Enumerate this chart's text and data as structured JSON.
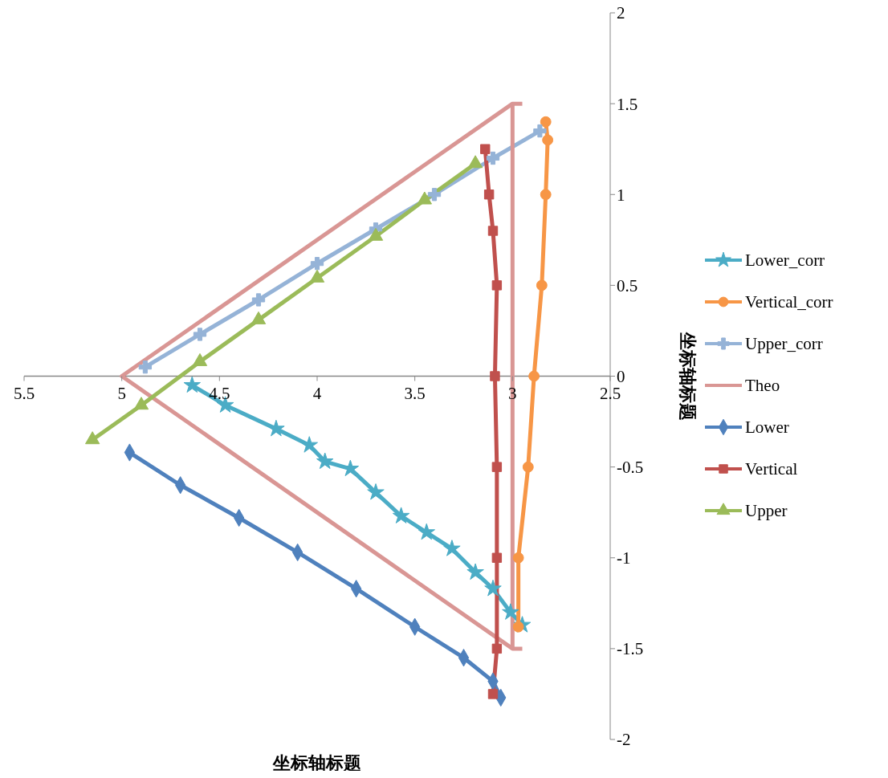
{
  "chart_data": {
    "type": "line",
    "xlabel": "坐标轴标题",
    "ylabel": "坐标轴标题",
    "xlim": [
      5.5,
      2.5
    ],
    "xticks": [
      5.5,
      5,
      4.5,
      4,
      3.5,
      3,
      2.5
    ],
    "ylim": [
      -2,
      2
    ],
    "yticks": [
      -2,
      -1.5,
      -1,
      -0.5,
      0,
      0.5,
      1,
      1.5,
      2
    ],
    "grid": false,
    "legend": "right",
    "series": [
      {
        "name": "Lower_corr",
        "color": "#4bacc6",
        "marker": "star",
        "x": [
          4.64,
          4.47,
          4.21,
          4.04,
          3.96,
          3.83,
          3.7,
          3.57,
          3.44,
          3.31,
          3.19,
          3.1,
          3.01,
          2.95
        ],
        "values": [
          -0.05,
          -0.16,
          -0.29,
          -0.38,
          -0.47,
          -0.51,
          -0.64,
          -0.77,
          -0.86,
          -0.95,
          -1.08,
          -1.17,
          -1.3,
          -1.37
        ]
      },
      {
        "name": "Vertical_corr",
        "color": "#f79646",
        "marker": "circle",
        "x": [
          2.97,
          2.97,
          2.92,
          2.89,
          2.85,
          2.83,
          2.82,
          2.83
        ],
        "values": [
          -1.38,
          -1.0,
          -0.5,
          0,
          0.5,
          1.0,
          1.3,
          1.4
        ]
      },
      {
        "name": "Upper_corr",
        "color": "#95b3d7",
        "marker": "cross",
        "x": [
          4.88,
          4.6,
          4.3,
          4.0,
          3.7,
          3.4,
          3.1,
          2.86
        ],
        "values": [
          0.05,
          0.23,
          0.42,
          0.62,
          0.81,
          1.0,
          1.2,
          1.35
        ]
      },
      {
        "name": "Theo",
        "color": "#d99694",
        "marker": "none",
        "x": [
          2.95,
          3,
          5,
          3,
          2.95,
          null,
          3,
          3
        ],
        "values": [
          1.5,
          1.5,
          0,
          -1.5,
          -1.5,
          null,
          -1.5,
          1.5
        ]
      },
      {
        "name": "Lower",
        "color": "#4f81bd",
        "marker": "diamond",
        "x": [
          4.96,
          4.7,
          4.4,
          4.1,
          3.8,
          3.5,
          3.25,
          3.1,
          3.06
        ],
        "values": [
          -0.42,
          -0.6,
          -0.78,
          -0.97,
          -1.17,
          -1.38,
          -1.55,
          -1.68,
          -1.77
        ]
      },
      {
        "name": "Vertical",
        "color": "#c0504d",
        "marker": "square",
        "x": [
          3.1,
          3.08,
          3.08,
          3.08,
          3.09,
          3.08,
          3.1,
          3.12,
          3.14
        ],
        "values": [
          -1.75,
          -1.5,
          -1.0,
          -0.5,
          0,
          0.5,
          0.8,
          1.0,
          1.25
        ]
      },
      {
        "name": "Upper",
        "color": "#9bbb59",
        "marker": "triangle",
        "x": [
          5.15,
          4.9,
          4.6,
          4.3,
          4.0,
          3.7,
          3.45,
          3.19
        ],
        "values": [
          -0.35,
          -0.16,
          0.08,
          0.31,
          0.54,
          0.77,
          0.97,
          1.17
        ]
      }
    ]
  }
}
